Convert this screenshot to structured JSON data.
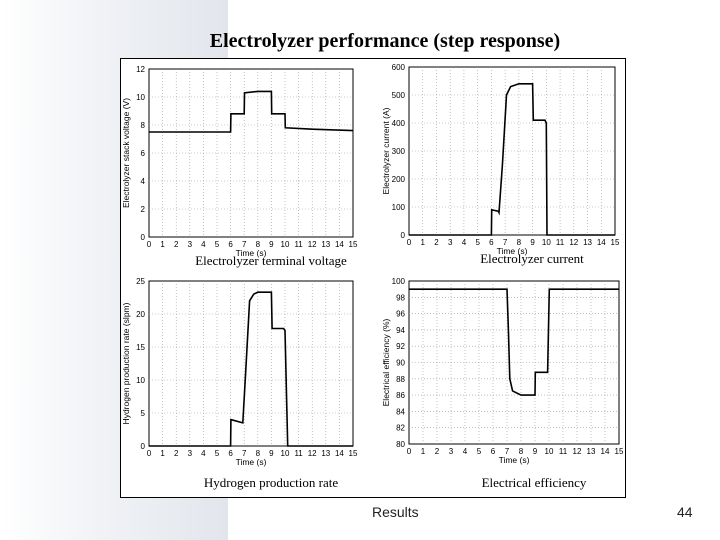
{
  "slide": {
    "title": "Electrolyzer performance (step response)",
    "footer": "Results",
    "page_number": "44"
  },
  "chart_data": [
    {
      "type": "line",
      "caption": "Electrolyzer terminal voltage",
      "xlabel": "Time (s)",
      "ylabel": "Electrolyzer stack voltage (V)",
      "xlim": [
        0,
        15
      ],
      "ylim": [
        0,
        12
      ],
      "xticks": [
        0,
        1,
        2,
        3,
        4,
        5,
        6,
        7,
        8,
        9,
        10,
        11,
        12,
        13,
        14,
        15
      ],
      "yticks": [
        0,
        2,
        4,
        6,
        8,
        10,
        12
      ],
      "grid": true,
      "x": [
        0,
        6,
        6.02,
        7,
        7.02,
        8,
        9,
        9.02,
        10,
        10.02,
        12,
        15
      ],
      "y": [
        7.5,
        7.5,
        8.8,
        8.8,
        10.3,
        10.4,
        10.4,
        8.8,
        8.8,
        7.8,
        7.7,
        7.6
      ]
    },
    {
      "type": "line",
      "caption": "Electrolyzer current",
      "xlabel": "Time (s)",
      "ylabel": "Electrolyzer current (A)",
      "xlim": [
        0,
        15
      ],
      "ylim": [
        0,
        600
      ],
      "xticks": [
        0,
        1,
        2,
        3,
        4,
        5,
        6,
        7,
        8,
        9,
        10,
        11,
        12,
        13,
        14,
        15
      ],
      "yticks": [
        0,
        100,
        200,
        300,
        400,
        500,
        600
      ],
      "grid": true,
      "x": [
        0,
        6,
        6.02,
        6.5,
        6.55,
        6.8,
        7.1,
        7.4,
        8,
        9,
        9.05,
        9.9,
        10,
        10.05,
        15
      ],
      "y": [
        0,
        0,
        90,
        85,
        80,
        250,
        500,
        530,
        540,
        540,
        410,
        410,
        400,
        0,
        0
      ]
    },
    {
      "type": "line",
      "caption": "Hydrogen production rate",
      "xlabel": "Time (s)",
      "ylabel": "Hydrogen production rate (slpm)",
      "xlim": [
        0,
        15
      ],
      "ylim": [
        0,
        25
      ],
      "xticks": [
        0,
        1,
        2,
        3,
        4,
        5,
        6,
        7,
        8,
        9,
        10,
        11,
        12,
        13,
        14,
        15
      ],
      "yticks": [
        0,
        5,
        10,
        15,
        20,
        25
      ],
      "grid": true,
      "x": [
        0,
        6,
        6.02,
        6.9,
        7.1,
        7.4,
        7.7,
        8,
        9,
        9.05,
        9.9,
        10,
        10.2,
        15
      ],
      "y": [
        0,
        0,
        4,
        3.5,
        11,
        22,
        23,
        23.3,
        23.3,
        17.8,
        17.8,
        17.5,
        0,
        0
      ]
    },
    {
      "type": "line",
      "caption": "Electrical efficiency",
      "xlabel": "Time (s)",
      "ylabel": "Electrical efficiency (%)",
      "xlim": [
        0,
        15
      ],
      "ylim": [
        80,
        100
      ],
      "xticks": [
        0,
        1,
        2,
        3,
        4,
        5,
        6,
        7,
        8,
        9,
        10,
        11,
        12,
        13,
        14,
        15
      ],
      "yticks": [
        80,
        82,
        84,
        86,
        88,
        90,
        92,
        94,
        96,
        98,
        100
      ],
      "grid": true,
      "x": [
        0,
        7,
        7.1,
        7.2,
        7.4,
        8,
        9,
        9.02,
        9.9,
        10.02,
        15
      ],
      "y": [
        99,
        99,
        94,
        88,
        86.5,
        86,
        86,
        88.8,
        88.8,
        99,
        99
      ]
    }
  ]
}
